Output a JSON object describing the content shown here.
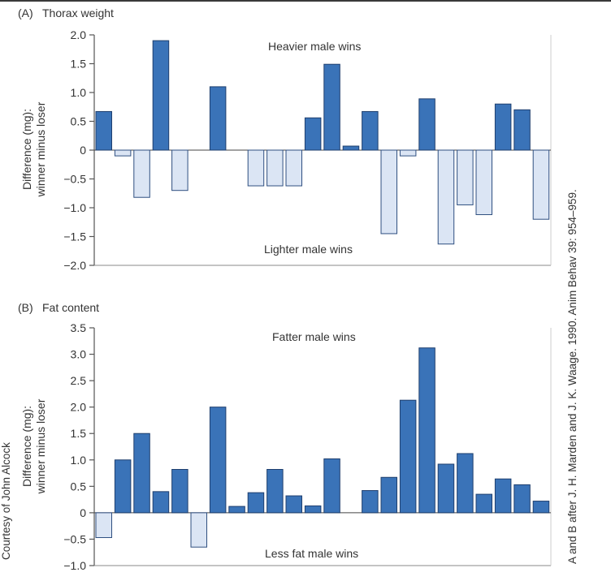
{
  "chart_data": [
    {
      "type": "bar",
      "panel_label": "(A)",
      "title": "Thorax weight",
      "ylabel_line1": "Difference (mg):",
      "ylabel_line2": "winner minus loser",
      "ylim": [
        -2.0,
        2.0
      ],
      "yticks": [
        2.0,
        1.5,
        1.0,
        0.5,
        0,
        -0.5,
        -1.0,
        -1.5,
        -2.0
      ],
      "ytick_labels": [
        "2.0",
        "1.5",
        "1.0",
        "0.5",
        "0",
        "−0.5",
        "−1.0",
        "−1.5",
        "−2.0"
      ],
      "annotation_top": "Heavier male wins",
      "annotation_bottom": "Lighter male wins",
      "values": [
        0.67,
        -0.1,
        -0.82,
        1.9,
        -0.7,
        null,
        1.1,
        null,
        -0.62,
        -0.62,
        -0.62,
        0.56,
        1.49,
        0.07,
        0.67,
        -1.45,
        -0.1,
        0.89,
        -1.63,
        -0.95,
        -1.12,
        0.8,
        0.7,
        -1.2
      ]
    },
    {
      "type": "bar",
      "panel_label": "(B)",
      "title": "Fat content",
      "ylabel_line1": "Difference (mg):",
      "ylabel_line2": "winner minus loser",
      "ylim": [
        -1.0,
        3.5
      ],
      "yticks": [
        3.5,
        3.0,
        2.5,
        2.0,
        1.5,
        1.0,
        0.5,
        0,
        -0.5,
        -1.0
      ],
      "ytick_labels": [
        "3.5",
        "3.0",
        "2.5",
        "2.0",
        "1.5",
        "1.0",
        "0.5",
        "0",
        "−0.5",
        "−1.0"
      ],
      "annotation_top": "Fatter male wins",
      "annotation_bottom": "Less fat male wins",
      "values": [
        -0.47,
        1.0,
        1.5,
        0.4,
        0.82,
        -0.65,
        2.0,
        0.12,
        0.38,
        0.82,
        0.32,
        0.13,
        1.02,
        null,
        0.42,
        0.67,
        2.13,
        3.12,
        0.92,
        1.12,
        0.35,
        0.64,
        0.53,
        0.22
      ]
    }
  ],
  "colors": {
    "positive_fill": "#3a73b8",
    "positive_stroke": "#1f3f6e",
    "negative_fill": "#dbe5f4",
    "negative_stroke": "#2f4f80",
    "axis": "#555555"
  },
  "credit_right": "A and B after J. H. Marden and J. K. Waage. 1990. Anim Behav 39: 954–959.",
  "credit_left": "Courtesy of John Alcock"
}
